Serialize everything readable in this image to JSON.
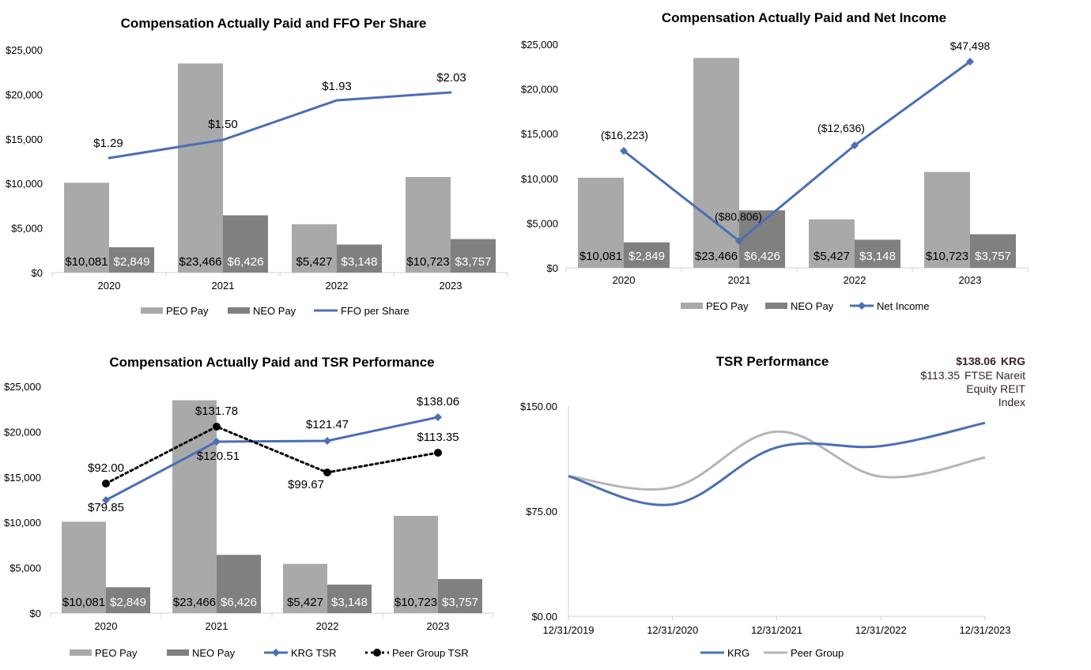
{
  "colors": {
    "peo": "#a9a9a9",
    "neo": "#808080",
    "line": "#4a6fb5",
    "peer": "#000000",
    "peer_line": "#b5b5b5",
    "axis": "#d0d0d0"
  },
  "chart_data": [
    {
      "type": "bar",
      "title": "Compensation Actually Paid and FFO Per Share",
      "categories": [
        "2020",
        "2021",
        "2022",
        "2023"
      ],
      "ylim": [
        0,
        25000
      ],
      "yticks": [
        "$0",
        "$5,000",
        "$10,000",
        "$15,000",
        "$20,000",
        "$25,000"
      ],
      "series": [
        {
          "name": "PEO Pay",
          "values": [
            10081,
            23466,
            5427,
            10723
          ],
          "labels": [
            "$10,081",
            "$23,466",
            "$5,427",
            "$10,723"
          ]
        },
        {
          "name": "NEO Pay",
          "values": [
            2849,
            6426,
            3148,
            3757
          ],
          "labels": [
            "$2,849",
            "$6,426",
            "$3,148",
            "$3,757"
          ]
        }
      ],
      "line_series": [
        {
          "name": "FFO per Share",
          "values": [
            1.29,
            1.5,
            1.93,
            2.03
          ],
          "labels": [
            "$1.29",
            "$1.50",
            "$1.93",
            "$2.03"
          ],
          "secondary_ylim": [
            -0.98,
            2.48
          ],
          "marker": "none"
        }
      ],
      "legend": [
        "PEO Pay",
        "NEO Pay",
        "FFO per Share"
      ]
    },
    {
      "type": "bar",
      "title": "Compensation Actually Paid and Net Income",
      "categories": [
        "2020",
        "2021",
        "2022",
        "2023"
      ],
      "ylim": [
        0,
        25000
      ],
      "yticks": [
        "$0",
        "$5,000",
        "$10,000",
        "$15,000",
        "$20,000",
        "$25,000"
      ],
      "series": [
        {
          "name": "PEO Pay",
          "values": [
            10081,
            23466,
            5427,
            10723
          ],
          "labels": [
            "$10,081",
            "$23,466",
            "$5,427",
            "$10,723"
          ]
        },
        {
          "name": "NEO Pay",
          "values": [
            2849,
            6426,
            3148,
            3757
          ],
          "labels": [
            "$2,849",
            "$6,426",
            "$3,148",
            "$3,757"
          ]
        }
      ],
      "line_series": [
        {
          "name": "Net Income",
          "values": [
            -16223,
            -80806,
            -12636,
            47498
          ],
          "labels": [
            "($16,223)",
            "($80,806)",
            "($12,636)",
            "$47,498"
          ],
          "secondary_ylim": [
            -92000,
            54000
          ],
          "marker": "diamond"
        }
      ],
      "legend": [
        "PEO Pay",
        "NEO Pay",
        "Net Income"
      ]
    },
    {
      "type": "bar",
      "title": "Compensation Actually Paid and TSR Performance",
      "categories": [
        "2020",
        "2021",
        "2022",
        "2023"
      ],
      "ylim": [
        0,
        25000
      ],
      "yticks": [
        "$0",
        "$5,000",
        "$10,000",
        "$15,000",
        "$20,000",
        "$25,000"
      ],
      "series": [
        {
          "name": "PEO Pay",
          "values": [
            10081,
            23466,
            5427,
            10723
          ],
          "labels": [
            "$10,081",
            "$23,466",
            "$5,427",
            "$10,723"
          ]
        },
        {
          "name": "NEO Pay",
          "values": [
            2849,
            6426,
            3148,
            3757
          ],
          "labels": [
            "$2,849",
            "$6,426",
            "$3,148",
            "$3,757"
          ]
        }
      ],
      "line_series": [
        {
          "name": "KRG TSR",
          "values": [
            79.85,
            120.51,
            121.47,
            138.06
          ],
          "labels": [
            "$79.85",
            "$120.51",
            "$121.47",
            "$138.06"
          ],
          "secondary_ylim": [
            12,
            172
          ],
          "marker": "diamond"
        },
        {
          "name": "Peer Group TSR",
          "values": [
            92.0,
            131.78,
            99.67,
            113.35
          ],
          "labels": [
            "$92.00",
            "$131.78",
            "$99.67",
            "$113.35"
          ],
          "secondary_ylim": [
            12,
            172
          ],
          "marker": "circle",
          "dotted": true
        }
      ],
      "legend": [
        "PEO Pay",
        "NEO Pay",
        "KRG TSR",
        "Peer Group TSR"
      ]
    },
    {
      "type": "line",
      "title": "TSR Performance",
      "x": [
        "12/31/2019",
        "12/31/2020",
        "12/31/2021",
        "12/31/2022",
        "12/31/2023"
      ],
      "ylim": [
        0,
        150
      ],
      "yticks": [
        "$0.00",
        "$75.00",
        "$150.00"
      ],
      "series": [
        {
          "name": "KRG",
          "values": [
            100,
            79.85,
            120.51,
            121.47,
            138.06
          ]
        },
        {
          "name": "Peer Group",
          "values": [
            100,
            92.0,
            131.78,
            99.67,
            113.35
          ]
        }
      ],
      "annotations": {
        "krg_value": "$138.06",
        "krg_name": "KRG",
        "peer_value": "$113.35",
        "peer_name_1": "FTSE Nareit",
        "peer_name_2": "Equity REIT",
        "peer_name_3": "Index"
      },
      "legend": [
        "KRG",
        "Peer Group"
      ]
    }
  ]
}
